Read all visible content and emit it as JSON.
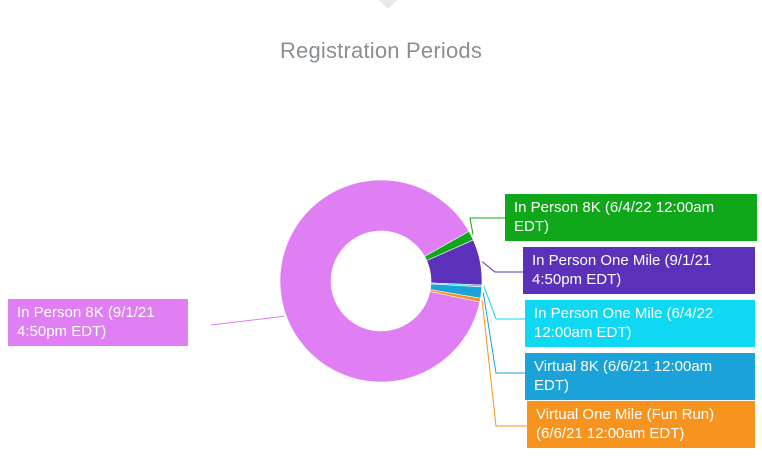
{
  "chart_data": {
    "type": "pie",
    "title": "Registration Periods",
    "donut": true,
    "legend": "none",
    "slices": [
      {
        "label": "In Person 8K (9/1/21 4:50pm EDT)",
        "value": 88.5,
        "color": "#df7ff3"
      },
      {
        "label": "In Person 8K (6/4/22 12:00am EDT)",
        "value": 1.5,
        "color": "#10a71a"
      },
      {
        "label": "In Person One Mile (9/1/21 4:50pm EDT)",
        "value": 7.3,
        "color": "#5a31b8"
      },
      {
        "label": "In Person One Mile (6/4/22 12:00am EDT)",
        "value": 0.3,
        "color": "#0fd8f3"
      },
      {
        "label": "Virtual 8K (6/6/21 12:00am EDT)",
        "value": 1.8,
        "color": "#1ba2d9"
      },
      {
        "label": "Virtual One Mile (Fun Run) (6/6/21 12:00am EDT)",
        "value": 0.6,
        "color": "#f7931f"
      }
    ]
  }
}
